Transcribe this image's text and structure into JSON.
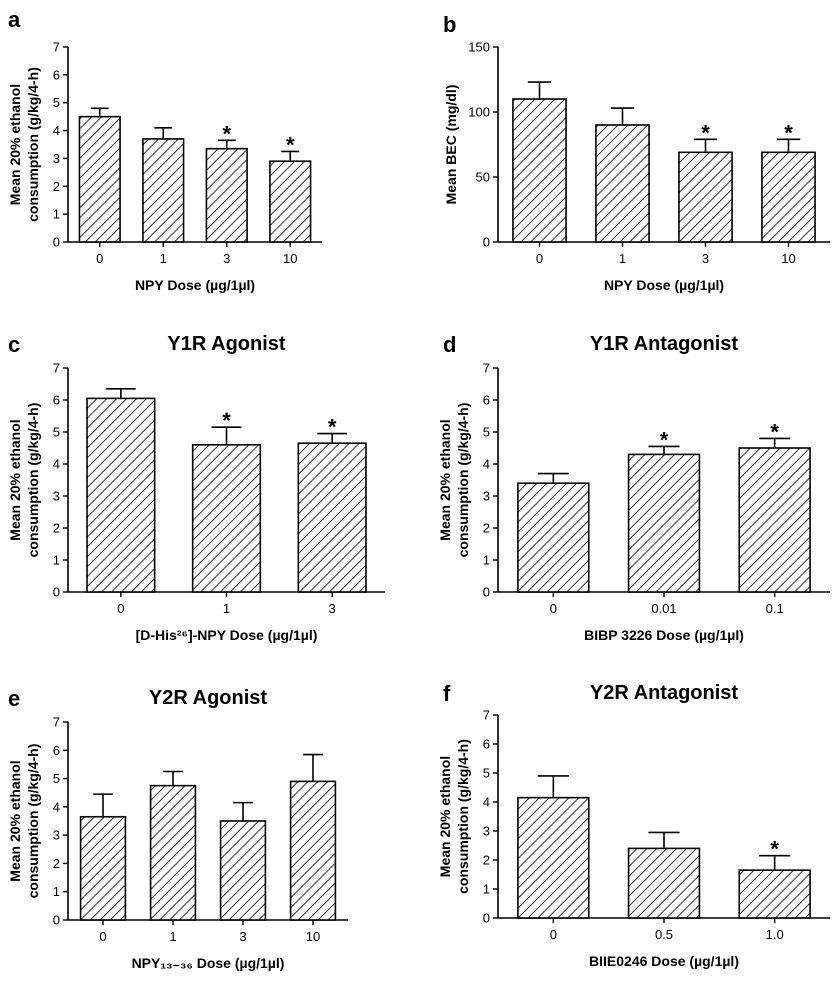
{
  "chart_data": [
    {
      "panel": "a",
      "type": "bar",
      "title": "",
      "categories": [
        "0",
        "1",
        "3",
        "10"
      ],
      "values": [
        4.5,
        3.7,
        3.35,
        2.9
      ],
      "errors": [
        0.3,
        0.4,
        0.3,
        0.35
      ],
      "significant": [
        false,
        false,
        true,
        true
      ],
      "xlabel": "NPY Dose (µg/1µl)",
      "ylabel": [
        "Mean 20% ethanol",
        "consumption (g/kg/4-h)"
      ],
      "ylim": [
        0,
        7
      ],
      "yticks": [
        "0",
        "1",
        "2",
        "3",
        "4",
        "5",
        "6",
        "7"
      ]
    },
    {
      "panel": "b",
      "type": "bar",
      "title": "",
      "categories": [
        "0",
        "1",
        "3",
        "10"
      ],
      "values": [
        110,
        90,
        69,
        69
      ],
      "errors": [
        13,
        13,
        10,
        10
      ],
      "significant": [
        false,
        false,
        true,
        true
      ],
      "xlabel": "NPY Dose (µg/1µl)",
      "ylabel": [
        "Mean BEC (mg/dl)"
      ],
      "ylim": [
        0,
        150
      ],
      "yticks": [
        "0",
        "50",
        "100",
        "150"
      ]
    },
    {
      "panel": "c",
      "type": "bar",
      "title": "Y1R Agonist",
      "categories": [
        "0",
        "1",
        "3"
      ],
      "values": [
        6.05,
        4.6,
        4.65
      ],
      "errors": [
        0.3,
        0.55,
        0.3
      ],
      "significant": [
        false,
        true,
        true
      ],
      "xlabel": "[D-His²⁶]-NPY Dose (µg/1µl)",
      "ylabel": [
        "Mean 20% ethanol",
        "consumption (g/kg/4-h)"
      ],
      "ylim": [
        0,
        7
      ],
      "yticks": [
        "0",
        "1",
        "2",
        "3",
        "4",
        "5",
        "6",
        "7"
      ]
    },
    {
      "panel": "d",
      "type": "bar",
      "title": "Y1R Antagonist",
      "categories": [
        "0",
        "0.01",
        "0.1"
      ],
      "values": [
        3.4,
        4.3,
        4.5
      ],
      "errors": [
        0.3,
        0.25,
        0.3
      ],
      "significant": [
        false,
        true,
        true
      ],
      "xlabel": "BIBP 3226 Dose (µg/1µl)",
      "ylabel": [
        "Mean 20% ethanol",
        "consumption (g/kg/4-h)"
      ],
      "ylim": [
        0,
        7
      ],
      "yticks": [
        "0",
        "1",
        "2",
        "3",
        "4",
        "5",
        "6",
        "7"
      ]
    },
    {
      "panel": "e",
      "type": "bar",
      "title": "Y2R Agonist",
      "categories": [
        "0",
        "1",
        "3",
        "10"
      ],
      "values": [
        3.65,
        4.75,
        3.5,
        4.9
      ],
      "errors": [
        0.8,
        0.5,
        0.65,
        0.95
      ],
      "significant": [
        false,
        false,
        false,
        false
      ],
      "xlabel": "NPY₁₃₋₃₆ Dose (µg/1µl)",
      "ylabel": [
        "Mean 20% ethanol",
        "consumption (g/kg/4-h)"
      ],
      "ylim": [
        0,
        7
      ],
      "yticks": [
        "0",
        "1",
        "2",
        "3",
        "4",
        "5",
        "6",
        "7"
      ]
    },
    {
      "panel": "f",
      "type": "bar",
      "title": "Y2R Antagonist",
      "categories": [
        "0",
        "0.5",
        "1.0"
      ],
      "values": [
        4.15,
        2.4,
        1.65
      ],
      "errors": [
        0.75,
        0.55,
        0.5
      ],
      "significant": [
        false,
        false,
        true
      ],
      "xlabel": "BIIE0246 Dose (µg/1µl)",
      "ylabel": [
        "Mean 20% ethanol",
        "consumption (g/kg/4-h)"
      ],
      "ylim": [
        0,
        7
      ],
      "yticks": [
        "0",
        "1",
        "2",
        "3",
        "4",
        "5",
        "6",
        "7"
      ]
    }
  ]
}
